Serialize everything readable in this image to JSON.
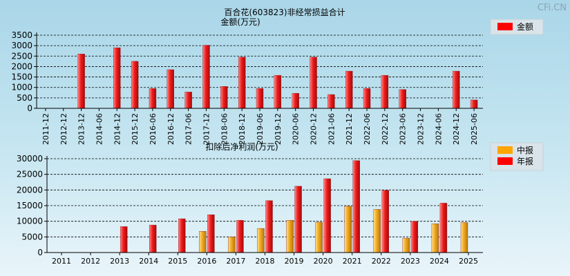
{
  "watermark": "CFi.CN",
  "chart_data": [
    {
      "type": "bar",
      "title": "百合花(603823)非经常损益合计",
      "ylabel": "金额(万元)",
      "categories": [
        "2011-12",
        "2012-12",
        "2013-12",
        "2014-06",
        "2014-12",
        "2015-12",
        "2016-06",
        "2016-12",
        "2017-06",
        "2017-12",
        "2018-06",
        "2018-12",
        "2019-06",
        "2019-12",
        "2020-06",
        "2020-12",
        "2021-06",
        "2021-12",
        "2022-06",
        "2022-12",
        "2023-06",
        "2023-12",
        "2024-06",
        "2024-12",
        "2025-06"
      ],
      "series": [
        {
          "name": "金额",
          "color": "#ff0000",
          "values": [
            0,
            0,
            2600,
            0,
            2900,
            2250,
            950,
            1850,
            780,
            3020,
            1050,
            2450,
            950,
            1580,
            720,
            2450,
            660,
            1780,
            950,
            1580,
            900,
            0,
            0,
            1780,
            400
          ]
        }
      ],
      "ylim": [
        0,
        3500
      ],
      "yticks": [
        0,
        500,
        1000,
        1500,
        2000,
        2500,
        3000,
        3500
      ],
      "grid": true,
      "legend": "top-right"
    },
    {
      "type": "bar",
      "title": "扣除后净利润(万元)",
      "categories": [
        "2011",
        "2012",
        "2013",
        "2014",
        "2015",
        "2016",
        "2017",
        "2018",
        "2019",
        "2020",
        "2021",
        "2022",
        "2023",
        "2024",
        "2025"
      ],
      "series": [
        {
          "name": "中报",
          "color": "#ffa500",
          "values": [
            null,
            null,
            null,
            null,
            null,
            6800,
            5000,
            7700,
            10300,
            9700,
            14800,
            13800,
            4600,
            9200,
            9600
          ]
        },
        {
          "name": "年报",
          "color": "#ff0000",
          "values": [
            null,
            null,
            8300,
            8800,
            10800,
            12100,
            10300,
            16600,
            21200,
            23600,
            29400,
            19900,
            10000,
            15800,
            null
          ]
        }
      ],
      "ylim": [
        0,
        30000
      ],
      "yticks": [
        0,
        5000,
        10000,
        15000,
        20000,
        25000,
        30000
      ],
      "grid": true,
      "legend": "top-right"
    }
  ]
}
